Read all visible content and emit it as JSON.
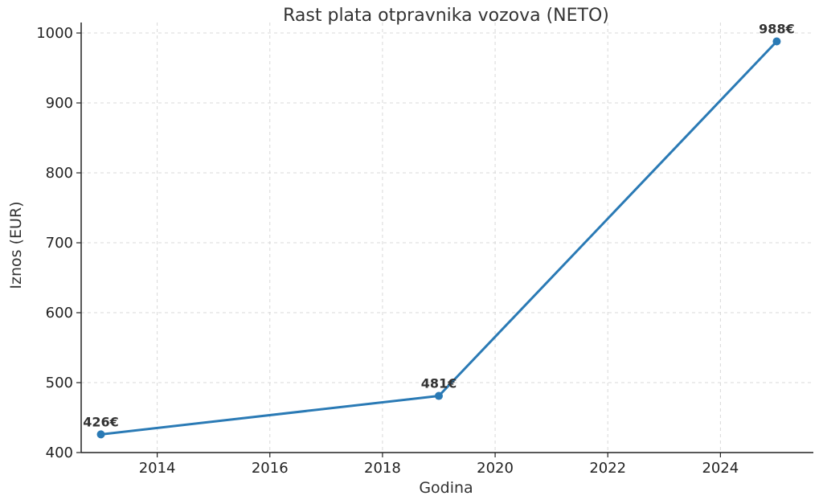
{
  "chart_data": {
    "type": "line",
    "title": "Rast plata otpravnika vozova (NETO)",
    "xlabel": "Godina",
    "ylabel": "Iznos (EUR)",
    "xlim": [
      2012.65,
      2025.65
    ],
    "ylim": [
      400,
      1015
    ],
    "xticks": [
      2014,
      2016,
      2018,
      2020,
      2022,
      2024
    ],
    "yticks": [
      400,
      500,
      600,
      700,
      800,
      900,
      1000
    ],
    "grid": true,
    "series": [
      {
        "color": "#2a7ab5",
        "points": [
          {
            "x": 2013,
            "y": 426,
            "label": "426€"
          },
          {
            "x": 2019,
            "y": 481,
            "label": "481€"
          },
          {
            "x": 2025,
            "y": 988,
            "label": "988€"
          }
        ]
      }
    ]
  }
}
